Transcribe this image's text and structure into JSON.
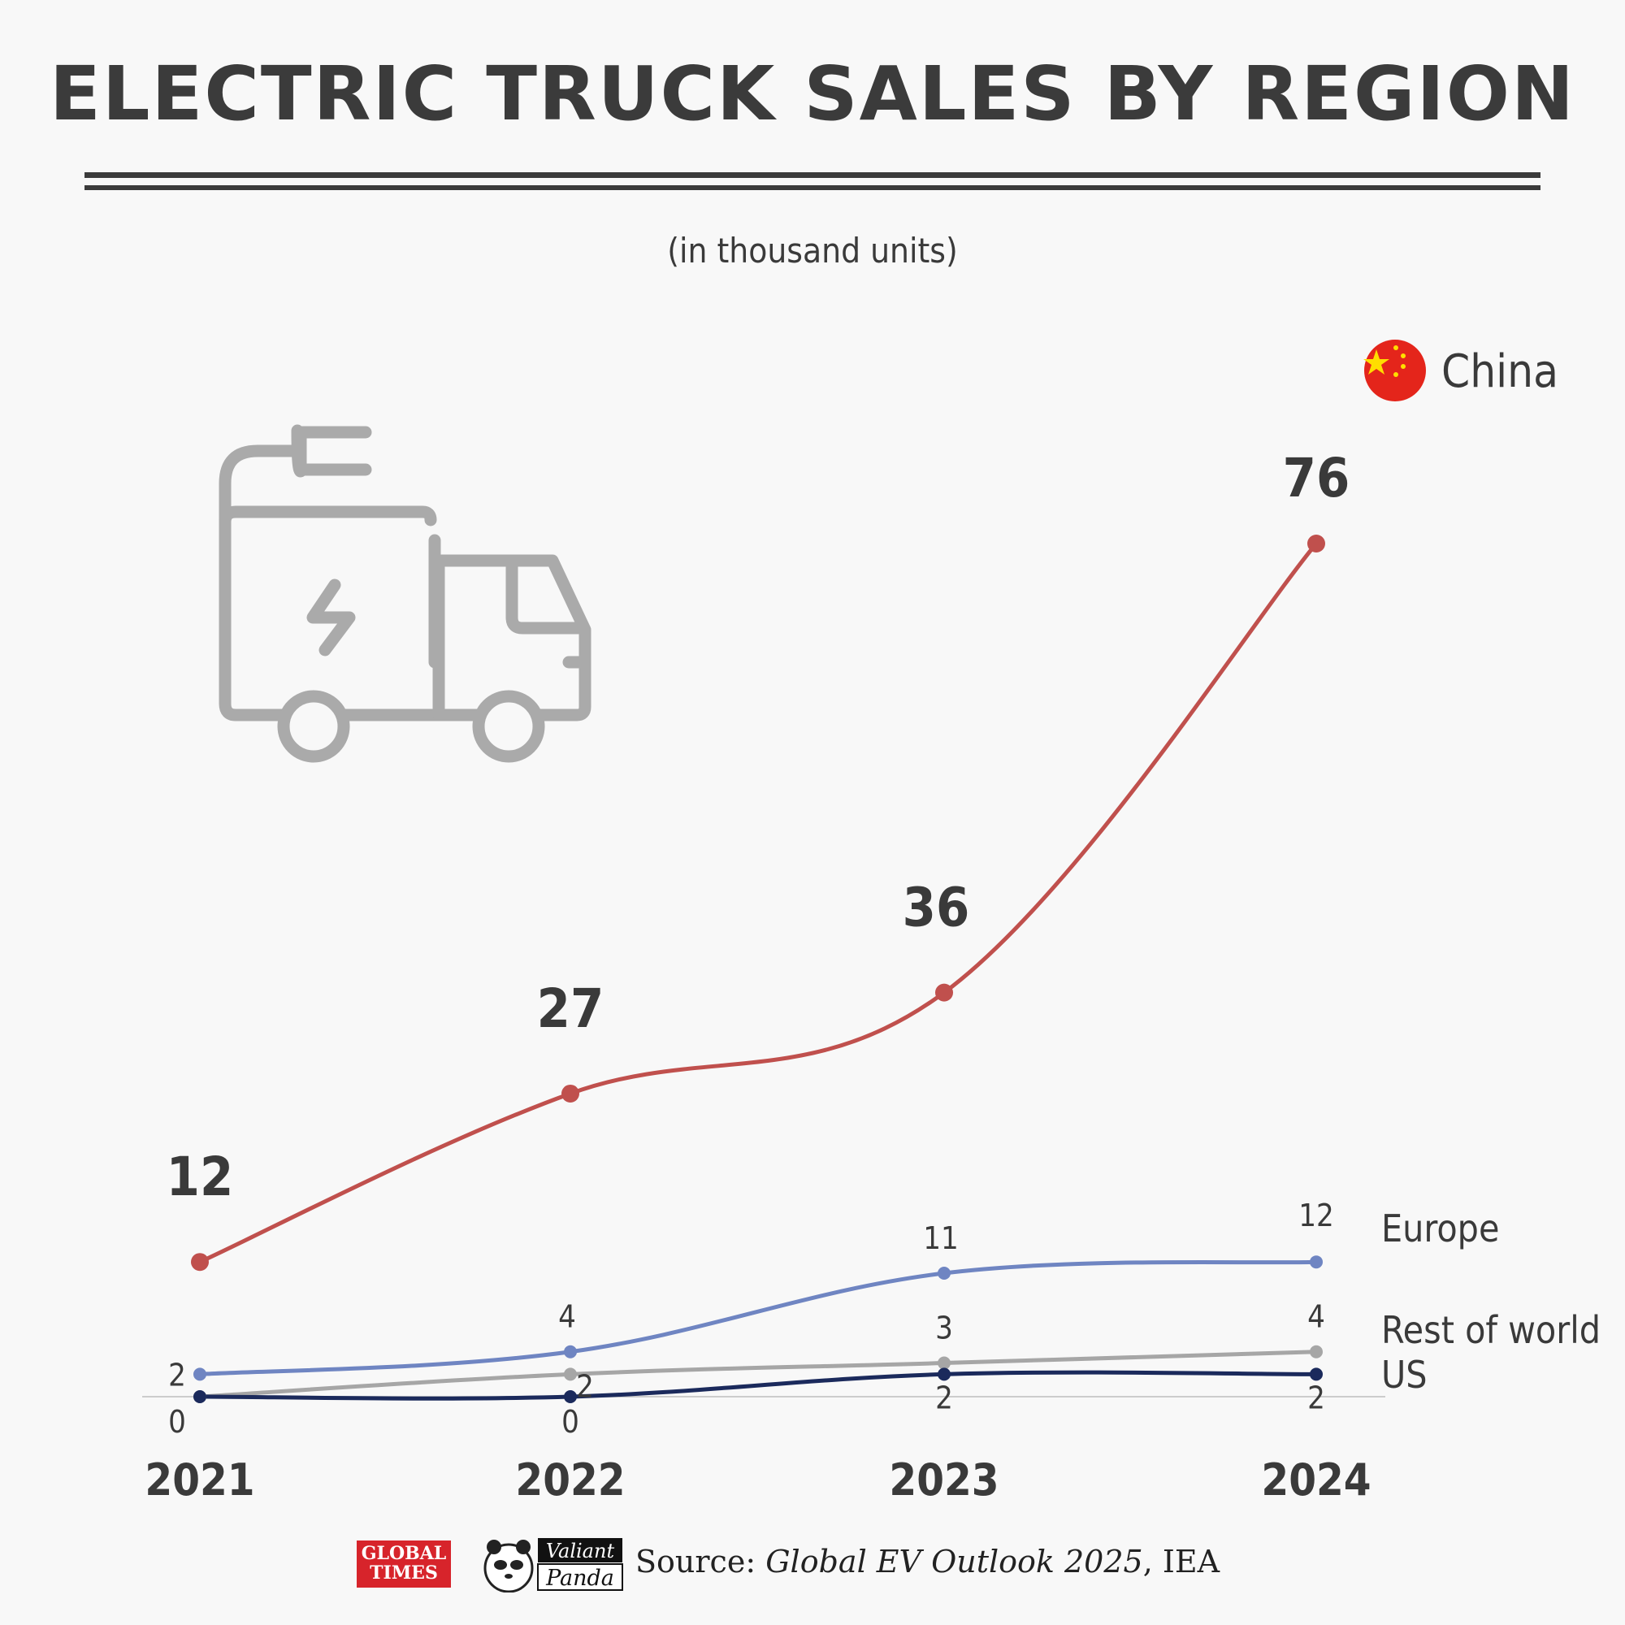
{
  "title": "ELECTRIC TRUCK SALES BY REGION",
  "subtitle": "(in thousand units)",
  "icon": "electric-truck-icon",
  "chart_data": {
    "type": "line",
    "x": [
      "2021",
      "2022",
      "2023",
      "2024"
    ],
    "ylim": [
      0,
      76
    ],
    "series": [
      {
        "name": "China",
        "color": "#c0504d",
        "values": [
          12,
          27,
          36,
          76
        ],
        "labels": [
          "12",
          "27",
          "36",
          "76"
        ]
      },
      {
        "name": "Europe",
        "color": "#6f85c2",
        "values": [
          2,
          4,
          11,
          12
        ],
        "labels": [
          "2",
          "4",
          "11",
          "12"
        ]
      },
      {
        "name": "Rest of world",
        "color": "#a6a6a6",
        "values": [
          0,
          2,
          3,
          4
        ],
        "labels": [
          "",
          "2",
          "3",
          "4"
        ]
      },
      {
        "name": "US",
        "color": "#1b2a5c",
        "values": [
          0,
          0,
          2,
          2
        ],
        "labels": [
          "0",
          "0",
          "2",
          "2"
        ]
      }
    ]
  },
  "footer": {
    "logo_global_times_line1": "GLOBAL",
    "logo_global_times_line2": "TIMES",
    "logo_valiant_panda_line1": "Valiant",
    "logo_valiant_panda_line2": "Panda",
    "source_prefix": "Source: ",
    "source_title": "Global EV Outlook 2025",
    "source_suffix": ", IEA"
  }
}
